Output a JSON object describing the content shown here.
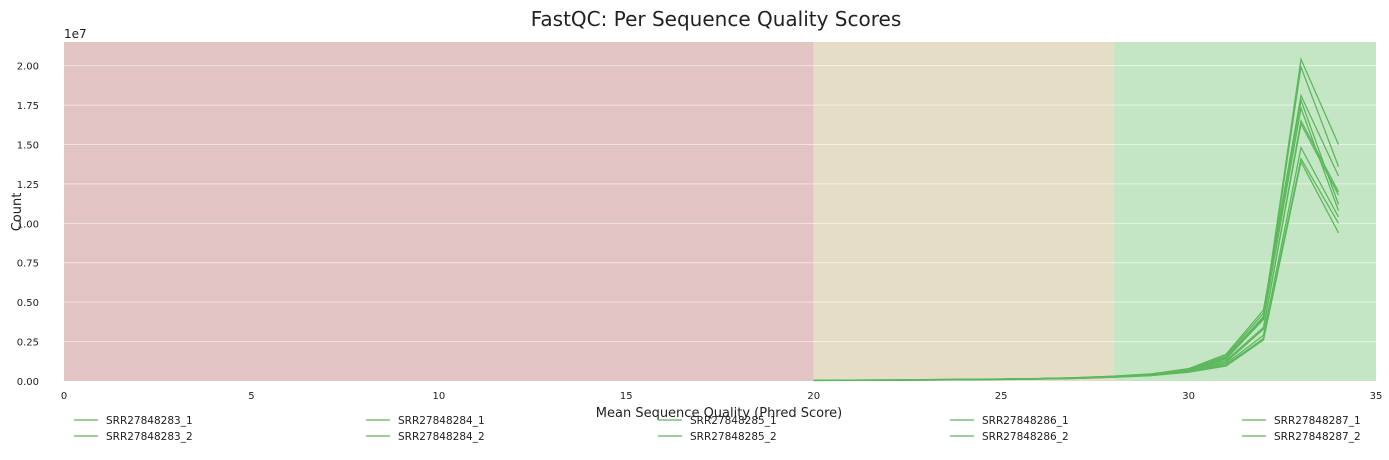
{
  "chart_data": {
    "type": "line",
    "title": "FastQC: Per Sequence Quality Scores",
    "xlabel": "Mean Sequence Quality (Phred Score)",
    "ylabel": "Count",
    "y_scale_label": "1e7",
    "xlim": [
      0,
      35
    ],
    "ylim": [
      0,
      21500000
    ],
    "x_ticks": [
      0,
      5,
      10,
      15,
      20,
      25,
      30,
      35
    ],
    "x_tick_labels": [
      "0",
      "5",
      "10",
      "15",
      "20",
      "25",
      "30",
      "35"
    ],
    "y_ticks": [
      0,
      2500000,
      5000000,
      7500000,
      10000000,
      12500000,
      15000000,
      17500000,
      20000000
    ],
    "y_tick_labels": [
      "0.00",
      "0.25",
      "0.50",
      "0.75",
      "1.00",
      "1.25",
      "1.50",
      "1.75",
      "2.00"
    ],
    "grid": true,
    "legend_position": "bottom",
    "bands": [
      {
        "from": 0,
        "to": 20,
        "color": "#e3c4c4"
      },
      {
        "from": 20,
        "to": 28,
        "color": "#e5ddc6"
      },
      {
        "from": 28,
        "to": 35,
        "color": "#c4e6c4"
      }
    ],
    "series_color": "#5cb85c",
    "x": [
      20,
      21,
      22,
      23,
      24,
      25,
      26,
      27,
      28,
      29,
      30,
      31,
      32,
      33,
      34
    ],
    "series": [
      {
        "name": "SRR27848283_1",
        "values": [
          40000,
          50000,
          60000,
          70000,
          90000,
          110000,
          140000,
          180000,
          260000,
          380000,
          620000,
          1200000,
          3300000,
          16500000,
          12000000
        ]
      },
      {
        "name": "SRR27848283_2",
        "values": [
          45000,
          55000,
          65000,
          80000,
          100000,
          120000,
          150000,
          200000,
          290000,
          420000,
          700000,
          1400000,
          3900000,
          17300000,
          10800000
        ]
      },
      {
        "name": "SRR27848284_1",
        "values": [
          40000,
          50000,
          60000,
          75000,
          95000,
          115000,
          145000,
          190000,
          280000,
          400000,
          680000,
          1500000,
          4100000,
          20400000,
          15000000
        ]
      },
      {
        "name": "SRR27848284_2",
        "values": [
          45000,
          55000,
          70000,
          85000,
          105000,
          130000,
          160000,
          210000,
          310000,
          450000,
          780000,
          1700000,
          4500000,
          18100000,
          13000000
        ]
      },
      {
        "name": "SRR27848285_1",
        "values": [
          35000,
          45000,
          55000,
          65000,
          85000,
          100000,
          130000,
          170000,
          250000,
          360000,
          600000,
          1100000,
          2900000,
          14800000,
          10400000
        ]
      },
      {
        "name": "SRR27848285_2",
        "values": [
          38000,
          48000,
          58000,
          70000,
          90000,
          110000,
          140000,
          180000,
          270000,
          390000,
          650000,
          1300000,
          3400000,
          16300000,
          11800000
        ]
      },
      {
        "name": "SRR27848286_1",
        "values": [
          40000,
          50000,
          62000,
          75000,
          95000,
          118000,
          148000,
          192000,
          285000,
          410000,
          690000,
          1450000,
          4000000,
          19900000,
          13600000
        ]
      },
      {
        "name": "SRR27848286_2",
        "values": [
          42000,
          52000,
          65000,
          80000,
          100000,
          125000,
          155000,
          200000,
          300000,
          430000,
          740000,
          1600000,
          4300000,
          17800000,
          11200000
        ]
      },
      {
        "name": "SRR27848287_1",
        "values": [
          30000,
          40000,
          50000,
          60000,
          80000,
          95000,
          120000,
          160000,
          240000,
          340000,
          560000,
          950000,
          2600000,
          13900000,
          9400000
        ]
      },
      {
        "name": "SRR27848287_2",
        "values": [
          33000,
          43000,
          53000,
          63000,
          83000,
          98000,
          125000,
          165000,
          245000,
          350000,
          580000,
          1000000,
          2700000,
          14100000,
          10000000
        ]
      }
    ]
  }
}
